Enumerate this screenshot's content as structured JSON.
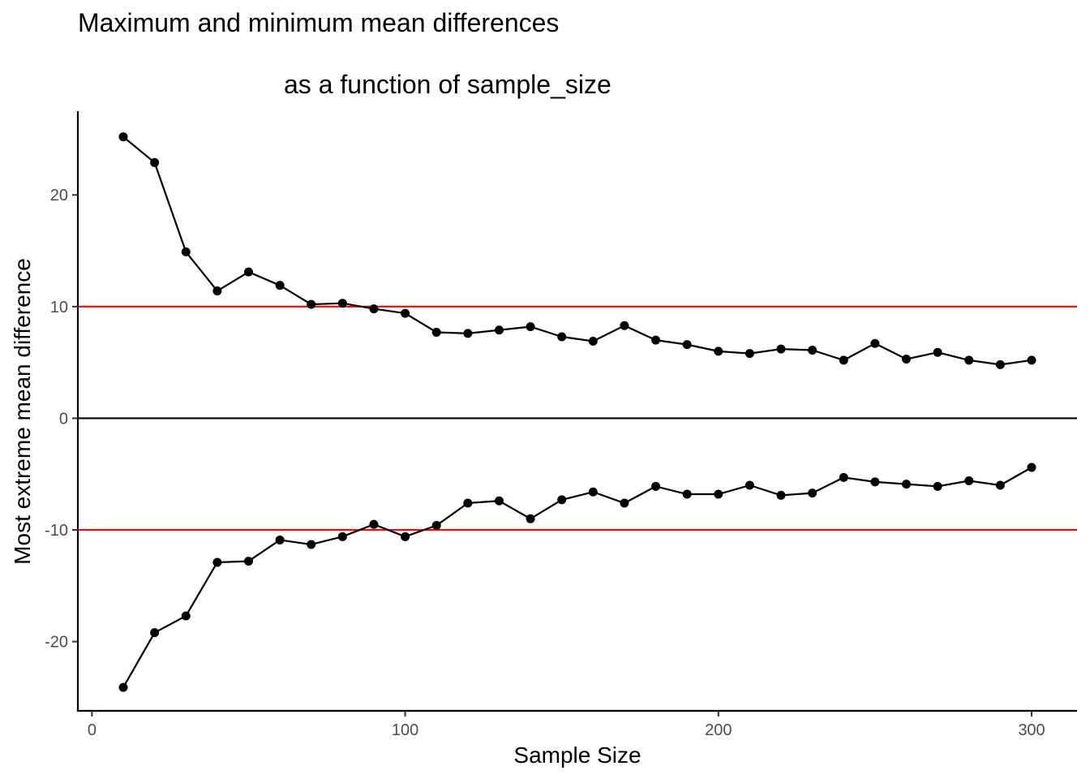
{
  "chart_data": {
    "type": "line",
    "title": "Maximum and minimum mean differences",
    "subtitle": "as a function of sample_size",
    "xlabel": "Sample Size",
    "ylabel": "Most extreme mean difference",
    "xlim": [
      -4.5,
      314.5
    ],
    "ylim": [
      -26.2,
      27.5
    ],
    "xticks": [
      0,
      100,
      200,
      300
    ],
    "yticks": [
      -20,
      -10,
      0,
      10,
      20
    ],
    "grid": false,
    "legend": "none",
    "reference_lines": [
      {
        "y": 10,
        "color": "#ff0000"
      },
      {
        "y": 0,
        "color": "#000000"
      },
      {
        "y": -10,
        "color": "#ff0000"
      }
    ],
    "x": [
      10,
      20,
      30,
      40,
      50,
      60,
      70,
      80,
      90,
      100,
      110,
      120,
      130,
      140,
      150,
      160,
      170,
      180,
      190,
      200,
      210,
      220,
      230,
      240,
      250,
      260,
      270,
      280,
      290,
      300
    ],
    "series": [
      {
        "values": [
          25.2,
          22.9,
          14.9,
          11.4,
          13.1,
          11.9,
          10.2,
          10.3,
          9.8,
          9.4,
          7.7,
          7.6,
          7.9,
          8.2,
          7.3,
          6.9,
          8.3,
          7.0,
          6.6,
          6.0,
          5.8,
          6.2,
          6.1,
          5.2,
          6.7,
          5.3,
          5.9,
          5.2,
          4.8,
          5.2
        ],
        "color": "#000000"
      },
      {
        "values": [
          -24.1,
          -19.2,
          -17.7,
          -12.9,
          -12.8,
          -10.9,
          -11.3,
          -10.6,
          -9.5,
          -10.6,
          -9.6,
          -7.6,
          -7.4,
          -9.0,
          -7.3,
          -6.6,
          -7.6,
          -6.1,
          -6.8,
          -6.8,
          -6.0,
          -6.9,
          -6.7,
          -5.3,
          -5.7,
          -5.9,
          -6.1,
          -5.6,
          -6.0,
          -4.4
        ],
        "color": "#000000"
      }
    ]
  }
}
